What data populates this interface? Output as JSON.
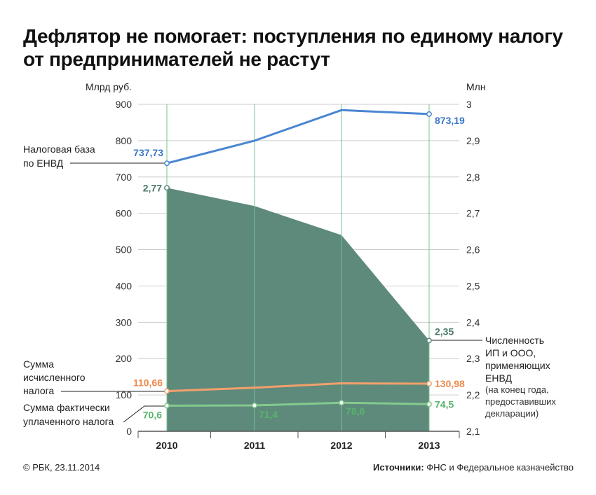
{
  "chart_data": {
    "type": "line",
    "title": "Дефлятор не помогает: поступления по единому налогу\nот предпринимателей не растут",
    "categories": [
      "2010",
      "2011",
      "2012",
      "2013"
    ],
    "y_left": {
      "label": "Млрд руб.",
      "range": [
        0,
        900
      ],
      "tick_labels": [
        "0",
        "100",
        "200",
        "300",
        "400",
        "500",
        "600",
        "700",
        "800",
        "900"
      ]
    },
    "y_right": {
      "label": "Млн",
      "range": [
        2.1,
        3
      ],
      "tick_labels": [
        "2,1",
        "2,2",
        "2,3",
        "2,4",
        "2,5",
        "2,6",
        "2,7",
        "2,8",
        "2,9",
        "3"
      ]
    },
    "grid": true,
    "series": [
      {
        "name": "Налоговая база\nпо ЕНВД",
        "type": "line",
        "axis": "left",
        "color": "#4a86d1",
        "label_color": "#3b78c8",
        "values": [
          737.73,
          800,
          884,
          873.19
        ],
        "labels": [
          "737,73",
          null,
          null,
          "873,19"
        ]
      },
      {
        "name": "Численность\nИП и ООО,\nприменяющих\nЕНВД",
        "note": "(на конец года,\nпредоставивших\nдекларации)",
        "type": "area",
        "axis": "right",
        "color": "#5e8a7b",
        "label_color": "#4a7a69",
        "values": [
          2.77,
          2.72,
          2.64,
          2.35
        ],
        "labels": [
          "2,77",
          null,
          null,
          "2,35"
        ]
      },
      {
        "name": "Сумма\nисчисленного\nналога",
        "type": "line",
        "axis": "left",
        "color": "#f2a06c",
        "label_color": "#ef8a4c",
        "values": [
          110.66,
          120,
          132,
          130.98
        ],
        "labels": [
          "110,66",
          null,
          null,
          "130,98"
        ]
      },
      {
        "name": "Сумма фактически\nуплаченного налога",
        "type": "line",
        "axis": "left",
        "color": "#84c98e",
        "label_color": "#57b46a",
        "values": [
          70.6,
          71.4,
          78.6,
          74.5
        ],
        "labels": [
          "70,6",
          "71,4",
          "78,6",
          "74,5"
        ]
      }
    ]
  },
  "footer": {
    "copyright": "© РБК, 23.11.2014",
    "sources_label": "Источники:",
    "sources_text": "ФНС и Федеральное казначейство"
  }
}
